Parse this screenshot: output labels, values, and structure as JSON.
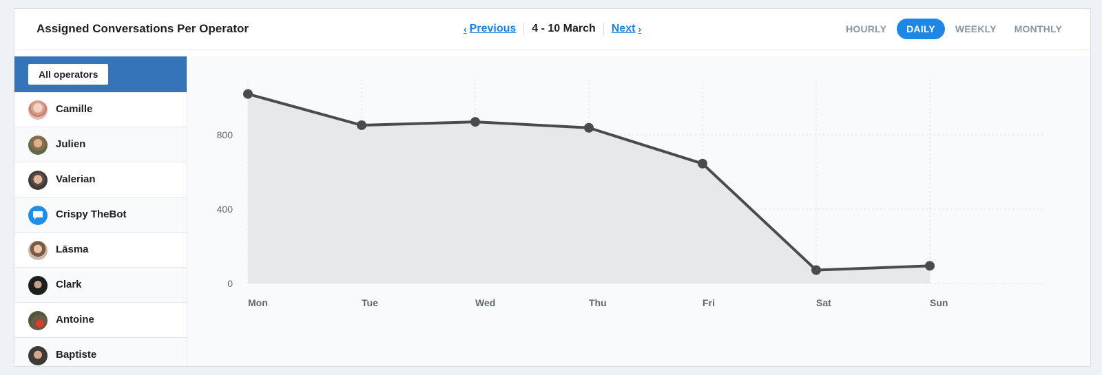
{
  "header": {
    "title": "Assigned Conversations Per Operator",
    "prev_label": "Previous",
    "next_label": "Next",
    "date_range": "4 - 10 March",
    "periods": [
      "HOURLY",
      "DAILY",
      "WEEKLY",
      "MONTHLY"
    ],
    "active_period": "DAILY"
  },
  "sidebar": {
    "all_operators_label": "All operators",
    "operators": [
      {
        "name": "Camille",
        "avatar": "person-avatar"
      },
      {
        "name": "Julien",
        "avatar": "person-avatar"
      },
      {
        "name": "Valerian",
        "avatar": "person-avatar"
      },
      {
        "name": "Crispy TheBot",
        "avatar": "chat-bubble-icon"
      },
      {
        "name": "Lāsma",
        "avatar": "person-avatar"
      },
      {
        "name": "Clark",
        "avatar": "person-avatar"
      },
      {
        "name": "Antoine",
        "avatar": "person-avatar"
      },
      {
        "name": "Baptiste",
        "avatar": "person-avatar"
      }
    ]
  },
  "colors": {
    "accent": "#1e87e5",
    "sidebar_selected": "#3574b8",
    "line": "#4a4b4d",
    "area": "#e7e8ea"
  },
  "chart_data": {
    "type": "area",
    "categories": [
      "Mon",
      "Tue",
      "Wed",
      "Thu",
      "Fri",
      "Sat",
      "Sun"
    ],
    "series": [
      {
        "values": [
          1020,
          852,
          870,
          838,
          645,
          72,
          95
        ]
      }
    ],
    "ylim": [
      0,
      1100
    ],
    "yticks": [
      0,
      400,
      800
    ],
    "title": "",
    "xlabel": "",
    "ylabel": "",
    "grid": true
  }
}
